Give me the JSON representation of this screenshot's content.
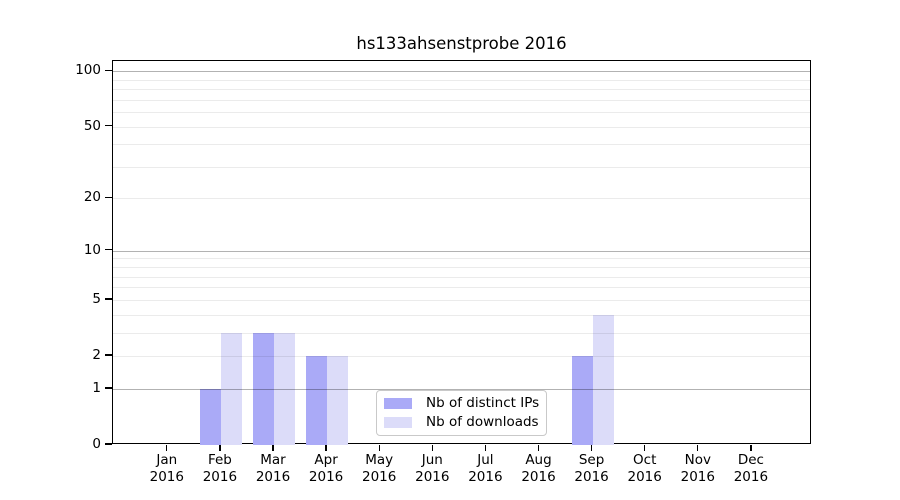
{
  "chart_data": {
    "type": "bar",
    "title": "hs133ahsenstprobe 2016",
    "categories": [
      "Jan",
      "Feb",
      "Mar",
      "Apr",
      "May",
      "Jun",
      "Jul",
      "Aug",
      "Sep",
      "Oct",
      "Nov",
      "Dec"
    ],
    "x_year_label": "2016",
    "series": [
      {
        "name": "Nb of distinct IPs",
        "color": "#aaaaf7",
        "values": [
          0,
          1,
          3,
          2,
          0,
          0,
          0,
          0,
          2,
          0,
          0,
          0
        ]
      },
      {
        "name": "Nb of downloads",
        "color": "#dcdcf9",
        "values": [
          0,
          3,
          3,
          2,
          0,
          0,
          0,
          0,
          4,
          0,
          0,
          0
        ]
      }
    ],
    "y_scale": "log1p",
    "ylim": [
      0,
      113.5
    ],
    "y_tick_labels": [
      "0",
      "1",
      "2",
      "5",
      "10",
      "20",
      "50",
      "100"
    ],
    "y_tick_values": [
      0,
      1,
      2,
      5,
      10,
      20,
      50,
      100
    ],
    "grid": {
      "major_values": [
        1,
        10,
        100
      ],
      "minor_values": [
        2,
        3,
        4,
        5,
        6,
        7,
        8,
        9,
        20,
        30,
        40,
        50,
        60,
        70,
        80,
        90
      ],
      "major_color": "rgba(0,0,0,0.30)",
      "minor_color": "rgba(0,0,0,0.08)"
    },
    "legend_position": "lower center",
    "axis_color": "#000000",
    "background_color": "#ffffff"
  }
}
